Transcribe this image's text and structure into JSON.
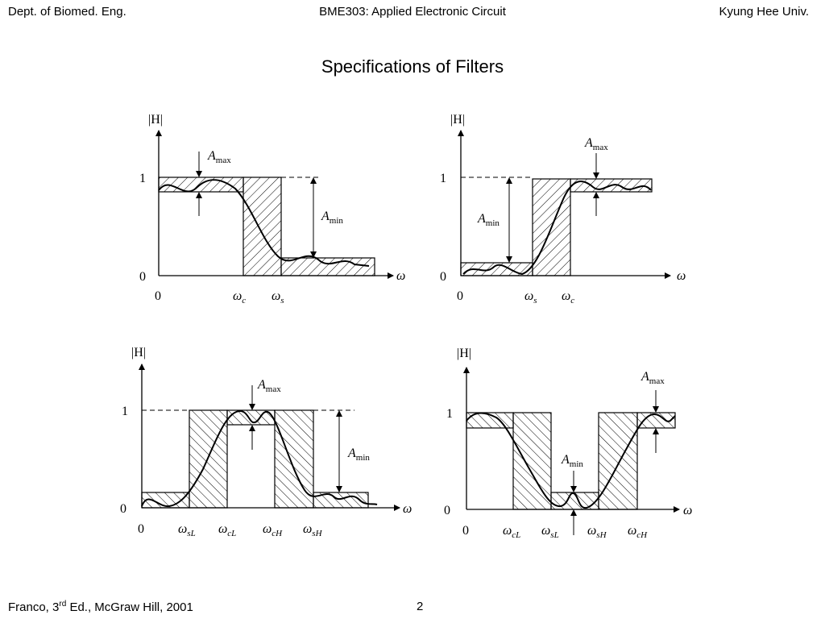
{
  "header": {
    "left": "Dept. of Biomed. Eng.",
    "center": "BME303: Applied Electronic Circuit",
    "right": "Kyung Hee Univ."
  },
  "slide": {
    "title": "Specifications of Filters"
  },
  "footer": {
    "citation_before_sup": "Franco, 3",
    "citation_sup": "rd",
    "citation_after_sup": " Ed., McGraw Hill, 2001",
    "page_number": "2"
  },
  "diagrams": {
    "common": {
      "y_axis_label": "|H|",
      "y_tick_1": "1",
      "y_tick_0": "0",
      "x_tick_0": "0",
      "x_axis_symbol": "ω",
      "a_max_main": "A",
      "a_max_sub": "max",
      "a_min_main": "A",
      "a_min_sub": "min"
    },
    "lowpass": {
      "xt1_main": "ω",
      "xt1_sub": "c",
      "xt2_main": "ω",
      "xt2_sub": "s"
    },
    "highpass": {
      "xt1_main": "ω",
      "xt1_sub": "s",
      "xt2_main": "ω",
      "xt2_sub": "c"
    },
    "bandpass": {
      "xt1_main": "ω",
      "xt1_sub": "sL",
      "xt2_main": "ω",
      "xt2_sub": "cL",
      "xt3_main": "ω",
      "xt3_sub": "cH",
      "xt4_main": "ω",
      "xt4_sub": "sH"
    },
    "bandstop": {
      "xt1_main": "ω",
      "xt1_sub": "cL",
      "xt2_main": "ω",
      "xt2_sub": "sL",
      "xt3_main": "ω",
      "xt3_sub": "sH",
      "xt4_main": "ω",
      "xt4_sub": "cH"
    }
  }
}
